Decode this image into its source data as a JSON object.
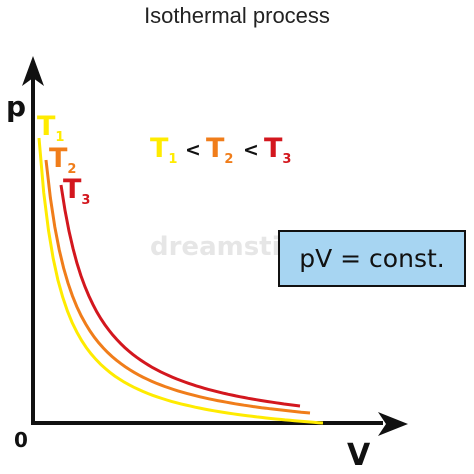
{
  "title": "Isothermal process",
  "axes": {
    "y_label": "p",
    "x_label": "V",
    "origin_label": "0"
  },
  "curves": [
    {
      "name": "T",
      "subscript": "1",
      "color": "#ffeb00"
    },
    {
      "name": "T",
      "subscript": "2",
      "color": "#f07d1a"
    },
    {
      "name": "T",
      "subscript": "3",
      "color": "#d3171e"
    }
  ],
  "relation": {
    "operator": "<"
  },
  "equation": {
    "text": "pV = const.",
    "box_fill": "#a7d5f2",
    "box_border": "#111111"
  },
  "watermark": "dreamstime"
}
